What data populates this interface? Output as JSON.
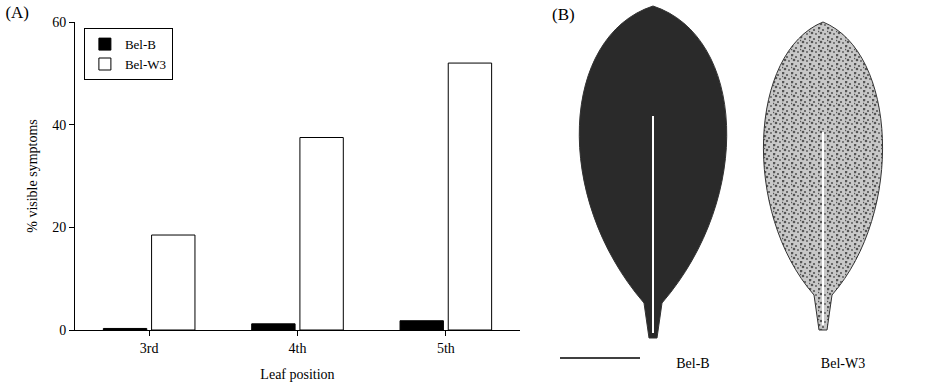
{
  "chart_data": {
    "type": "bar",
    "title": "(A)",
    "x_label": "Leaf position",
    "y_label": "% visible symptoms",
    "categories": [
      "3rd",
      "4th",
      "5th"
    ],
    "series": [
      {
        "name": "Bel-B",
        "color": "#000000",
        "values": [
          0.3,
          1.2,
          1.8
        ]
      },
      {
        "name": "Bel-W3",
        "color": "#ffffff",
        "values": [
          18.5,
          37.5,
          52
        ]
      }
    ],
    "ylim": [
      0,
      60
    ],
    "yticks": [
      0,
      20,
      40,
      60
    ],
    "grid": false,
    "legend": "top-left"
  },
  "image_panel": {
    "title": "(B)",
    "labels": [
      "Bel-B",
      "Bel-W3"
    ]
  }
}
